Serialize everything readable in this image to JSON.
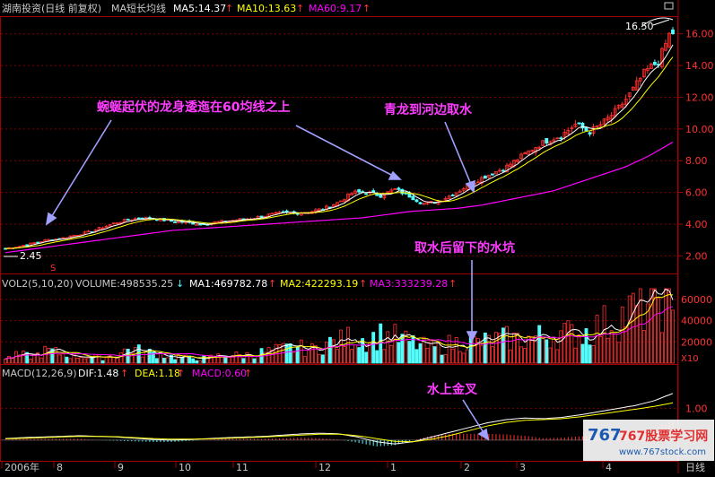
{
  "header": {
    "stock": "湖南投资(日线 前复权)",
    "ma_label": "MA短长均线",
    "ma5": "MA5:14.37",
    "ma10": "MA10:13.63",
    "ma60": "MA60:9.17",
    "up_arrow": "↑"
  },
  "vol_header": {
    "vol": "VOL2(5,10,20)",
    "volume": "VOLUME:498535.25",
    "down_arrow": "↓",
    "ma1": "MA1:469782.78",
    "ma2": "MA2:422293.19",
    "ma3": "MA3:333239.28",
    "up_arrow": "↑"
  },
  "macd_header": {
    "macd": "MACD(12,26,9)",
    "dif": "DIF:1.48",
    "dea": "DEA:1.18",
    "macdv": "MACD:0.60",
    "up_arrow": "↑"
  },
  "annotations": {
    "a1": "蜿蜒起伏的龙身逶迤在60均线之上",
    "a2": "青龙到河边取水",
    "a3": "取水后留下的水坑",
    "a4": "水上金叉",
    "high_label": "16.50",
    "low_label": "2.45",
    "s_mark": "S"
  },
  "price_axis": [
    "16.00",
    "14.00",
    "12.00",
    "10.00",
    "8.00",
    "6.00",
    "4.00",
    "2.00"
  ],
  "vol_axis": [
    "60000",
    "40000",
    "20000"
  ],
  "vol_unit": "X10",
  "macd_axis": [
    "1.00"
  ],
  "date_axis": [
    "2006年",
    "8",
    "9",
    "10",
    "11",
    "12",
    "1",
    "2",
    "3",
    "4"
  ],
  "date_axis_right": "日线",
  "watermark": {
    "site": "767股票学习网",
    "url": "www.767stock.com",
    "logo": "767"
  },
  "colors": {
    "up": "#ff3232",
    "down": "#54fcfc",
    "ma5": "#ffffff",
    "ma10": "#ffff00",
    "ma60": "#ff00ff",
    "annotation": "#ff3cff",
    "grid": "#800000"
  },
  "chart_data": [
    {
      "type": "candlestick",
      "title": "湖南投资(日线 前复权)",
      "x_start": "2006-07",
      "x_end": "2007-04",
      "ylim": [
        1.0,
        17.0
      ],
      "max_label": 16.5,
      "min_label": 2.45,
      "close_trend": [
        2.45,
        2.6,
        2.8,
        3.0,
        3.1,
        3.3,
        3.5,
        3.8,
        4.1,
        4.3,
        4.4,
        4.3,
        4.2,
        4.1,
        4.0,
        4.1,
        4.2,
        4.3,
        4.4,
        4.6,
        4.7,
        4.7,
        4.8,
        5.0,
        5.4,
        6.0,
        6.0,
        5.8,
        6.2,
        5.8,
        5.3,
        5.4,
        5.8,
        6.3,
        6.8,
        7.2,
        7.6,
        8.2,
        8.8,
        9.3,
        9.6,
        10.3,
        9.8,
        10.4,
        11.2,
        12.3,
        13.6,
        14.3,
        16.5
      ],
      "ma60": [
        2.2,
        2.4,
        2.6,
        2.8,
        3.0,
        3.2,
        3.4,
        3.6,
        3.7,
        3.8,
        3.9,
        4.0,
        4.1,
        4.2,
        4.3,
        4.4,
        4.6,
        4.8,
        4.9,
        5.0,
        5.2,
        5.5,
        5.8,
        6.1,
        6.6,
        7.1,
        7.6,
        8.3,
        9.17
      ],
      "series": [
        {
          "name": "MA5",
          "last": 14.37
        },
        {
          "name": "MA10",
          "last": 13.63
        },
        {
          "name": "MA60",
          "last": 9.17
        }
      ]
    },
    {
      "type": "bar",
      "title": "VOL2(5,10,20)",
      "ylim": [
        0,
        70000
      ],
      "unit": "X10",
      "values": [
        4000,
        8000,
        6000,
        12000,
        9000,
        7000,
        6000,
        5000,
        8000,
        14000,
        10000,
        9000,
        6000,
        5000,
        4000,
        6000,
        8000,
        7000,
        9000,
        11000,
        13000,
        15000,
        12000,
        18000,
        20000,
        25000,
        22000,
        26000,
        24000,
        20000,
        16000,
        14000,
        18000,
        20000,
        19000,
        21000,
        23000,
        22000,
        24000,
        26000,
        28000,
        27000,
        30000,
        36000,
        42000,
        48000,
        55000,
        64000,
        49850
      ],
      "series": [
        {
          "name": "VOLUME",
          "last": 498535.25
        },
        {
          "name": "MA1",
          "last": 469782.78
        },
        {
          "name": "MA2",
          "last": 422293.19
        },
        {
          "name": "MA3",
          "last": 333239.28
        }
      ]
    },
    {
      "type": "bar",
      "title": "MACD(12,26,9)",
      "ylim": [
        -0.6,
        1.9
      ],
      "dif": [
        0.05,
        0.08,
        0.1,
        0.12,
        0.14,
        0.12,
        0.1,
        0.06,
        0.02,
        0.0,
        0.02,
        0.05,
        0.08,
        0.1,
        0.12,
        0.16,
        0.2,
        0.22,
        0.2,
        0.1,
        -0.05,
        -0.12,
        -0.05,
        0.1,
        0.25,
        0.4,
        0.55,
        0.65,
        0.7,
        0.68,
        0.72,
        0.8,
        0.9,
        1.0,
        1.1,
        1.25,
        1.48
      ],
      "dea": [
        0.04,
        0.06,
        0.08,
        0.1,
        0.12,
        0.12,
        0.11,
        0.08,
        0.05,
        0.03,
        0.03,
        0.04,
        0.06,
        0.08,
        0.1,
        0.13,
        0.16,
        0.19,
        0.19,
        0.14,
        0.05,
        -0.04,
        -0.05,
        0.03,
        0.15,
        0.3,
        0.45,
        0.56,
        0.63,
        0.65,
        0.68,
        0.74,
        0.82,
        0.9,
        0.98,
        1.07,
        1.18
      ],
      "series": [
        {
          "name": "DIF",
          "last": 1.48
        },
        {
          "name": "DEA",
          "last": 1.18
        },
        {
          "name": "MACD",
          "last": 0.6
        }
      ]
    }
  ]
}
